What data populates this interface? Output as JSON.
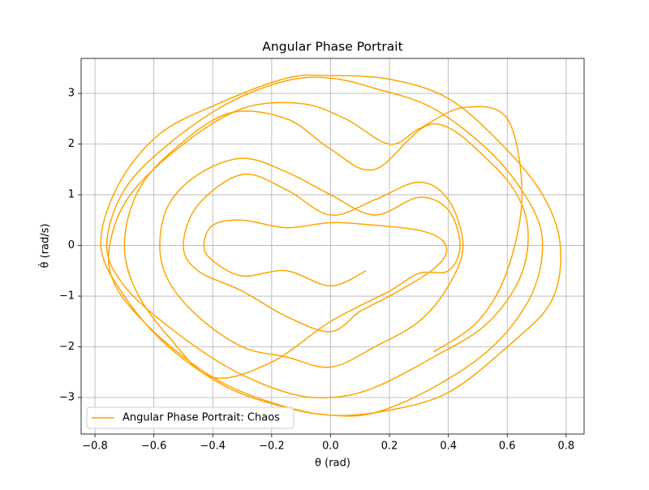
{
  "chart_data": {
    "type": "line",
    "title": "Angular Phase Portrait",
    "x_label": "θ (rad)",
    "y_label": "θ̇ (rad/s)",
    "xlim": [
      -0.847,
      0.861
    ],
    "ylim": [
      -3.72,
      3.69
    ],
    "xticks": [
      {
        "value": -0.8,
        "label": "−0.8"
      },
      {
        "value": -0.6,
        "label": "−0.6"
      },
      {
        "value": -0.4,
        "label": "−0.4"
      },
      {
        "value": -0.2,
        "label": "−0.2"
      },
      {
        "value": 0,
        "label": "0.0"
      },
      0.2,
      0.4,
      0.6,
      0.8
    ],
    "yticks": [
      {
        "value": -3,
        "label": "−3"
      },
      {
        "value": -2,
        "label": "−2"
      },
      {
        "value": -1,
        "label": "−1"
      },
      0,
      1,
      2,
      3
    ],
    "grid": true,
    "legend": "lower left",
    "series": [
      {
        "name": "Angular Phase Portrait: Chaos",
        "color": "#ffa500",
        "x": [
          0.12,
          0.0,
          -0.15,
          -0.3,
          -0.4,
          -0.43,
          -0.4,
          -0.3,
          -0.15,
          0.0,
          0.15,
          0.3,
          0.38,
          0.39,
          0.33,
          0.2,
          0.1,
          0.0,
          -0.15,
          -0.3,
          -0.45,
          -0.5,
          -0.45,
          -0.3,
          -0.15,
          0.0,
          0.15,
          0.3,
          0.4,
          0.45,
          0.4,
          0.3,
          0.15,
          0.0,
          -0.15,
          -0.3,
          -0.45,
          -0.55,
          -0.58,
          -0.55,
          -0.45,
          -0.3,
          -0.15,
          0.0,
          0.15,
          0.3,
          0.4,
          0.44,
          0.4,
          0.3,
          0.2,
          0.0,
          -0.2,
          -0.4,
          -0.55,
          -0.66,
          -0.7,
          -0.66,
          -0.55,
          -0.35,
          -0.15,
          0.0,
          0.15,
          0.35,
          0.55,
          0.65,
          0.67,
          0.63,
          0.52,
          0.35,
          0.15,
          0.0,
          -0.15,
          -0.35,
          -0.55,
          -0.7,
          -0.76,
          -0.7,
          -0.55,
          -0.35,
          -0.15,
          0.0,
          0.15,
          0.35,
          0.55,
          0.68,
          0.72,
          0.68,
          0.55,
          0.35,
          0.15,
          0.0,
          -0.15,
          -0.35,
          -0.55,
          -0.7,
          -0.78,
          -0.72,
          -0.58,
          -0.38,
          -0.15,
          0.0,
          0.2,
          0.4,
          0.58,
          0.72,
          0.78,
          0.75,
          0.6,
          0.4,
          0.2,
          0.0,
          -0.2,
          -0.4,
          -0.6,
          -0.73,
          -0.75,
          -0.68,
          -0.5,
          -0.3,
          -0.1,
          0.05,
          0.2,
          0.3,
          0.45,
          0.6,
          0.65,
          0.6,
          0.5,
          0.35
        ],
        "y": [
          -0.5,
          -0.8,
          -0.5,
          -0.6,
          -0.3,
          0.0,
          0.4,
          0.5,
          0.35,
          0.45,
          0.4,
          0.3,
          0.1,
          -0.2,
          -0.55,
          -1.0,
          -1.3,
          -1.7,
          -1.4,
          -0.9,
          -0.5,
          0.0,
          0.8,
          1.4,
          1.1,
          0.6,
          0.9,
          1.25,
          0.9,
          0.0,
          -0.8,
          -1.5,
          -2.0,
          -2.4,
          -2.2,
          -2.0,
          -1.4,
          -0.7,
          0.0,
          0.8,
          1.4,
          1.72,
          1.45,
          1.0,
          0.6,
          0.95,
          0.7,
          0.0,
          -0.5,
          -0.55,
          -0.9,
          -1.5,
          -2.3,
          -2.6,
          -1.8,
          -0.9,
          0.0,
          1.0,
          1.8,
          2.6,
          2.5,
          1.9,
          1.5,
          2.4,
          1.6,
          0.8,
          0.0,
          -0.8,
          -1.6,
          -2.2,
          -2.8,
          -3.0,
          -2.9,
          -2.4,
          -1.6,
          -0.8,
          0.0,
          1.1,
          2.0,
          2.8,
          3.25,
          3.3,
          3.1,
          2.7,
          1.8,
          0.8,
          0.0,
          -1.0,
          -2.0,
          -2.8,
          -3.3,
          -3.35,
          -3.2,
          -2.8,
          -2.0,
          -1.0,
          0.0,
          1.2,
          2.2,
          2.8,
          3.3,
          3.35,
          3.28,
          2.9,
          2.0,
          1.0,
          0.0,
          -1.1,
          -2.0,
          -2.9,
          -3.25,
          -3.35,
          -3.1,
          -2.6,
          -1.7,
          -0.8,
          0.0,
          1.0,
          2.0,
          2.7,
          2.8,
          2.5,
          2.0,
          2.3,
          2.72,
          2.5,
          1.0,
          -0.5,
          -1.5,
          -2.1
        ]
      }
    ]
  }
}
